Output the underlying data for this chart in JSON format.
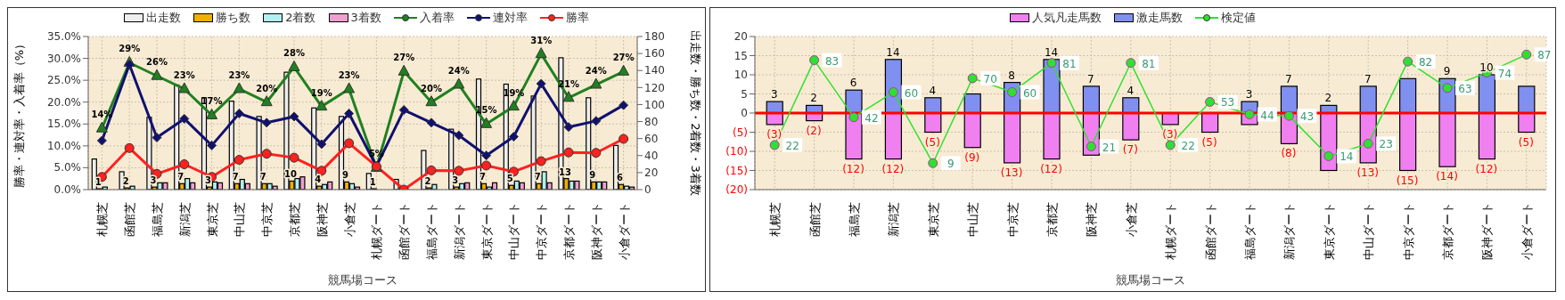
{
  "chart_data": [
    {
      "type": "bar",
      "xlabel": "競馬場コース",
      "ylabel": "勝率・連対率・入着率（%）",
      "y2label": "出走数・勝ち数・2着数・3着数",
      "categories": [
        "札幌芝",
        "函館芝",
        "福島芝",
        "新潟芝",
        "東京芝",
        "中山芝",
        "中京芝",
        "京都芝",
        "阪神芝",
        "小倉芝",
        "札幌ダート",
        "函館ダート",
        "福島ダート",
        "新潟ダート",
        "東京ダート",
        "中山ダート",
        "中京ダート",
        "京都ダート",
        "阪神ダート",
        "小倉ダート"
      ],
      "ylim": [
        0,
        35
      ],
      "yticks": [
        {
          "value": 0,
          "label": "0.0%"
        },
        {
          "value": 5,
          "label": "5.0%"
        },
        {
          "value": 10,
          "label": "10.0%"
        },
        {
          "value": 15,
          "label": "15.0%"
        },
        {
          "value": 20,
          "label": "20.0%"
        },
        {
          "value": 25,
          "label": "25.0%"
        },
        {
          "value": 30,
          "label": "30.0%"
        },
        {
          "value": 35,
          "label": "35.0%"
        }
      ],
      "y2lim": [
        0,
        180
      ],
      "y2ticks": [
        0,
        20,
        40,
        60,
        80,
        100,
        120,
        140,
        160,
        180
      ],
      "grid": true,
      "legend": "top",
      "series": [
        {
          "name": "出走数",
          "axis": "y2",
          "color": "#eeeeee",
          "values": [
            36,
            21,
            85,
            123,
            108,
            104,
            86,
            138,
            96,
            86,
            19,
            12,
            46,
            71,
            130,
            124,
            110,
            155,
            108,
            52
          ]
        },
        {
          "name": "勝ち数",
          "axis": "y2",
          "color": "#f0b000",
          "values": [
            1,
            2,
            3,
            7,
            3,
            7,
            7,
            10,
            4,
            9,
            1,
            0,
            2,
            3,
            7,
            5,
            7,
            13,
            9,
            6
          ],
          "value_labels": [
            "1",
            "2",
            "3",
            "7",
            "3",
            "7",
            "7",
            "10",
            "4",
            "9",
            "1",
            null,
            "2",
            "3",
            "7",
            "5",
            "7",
            "13",
            "9",
            "6"
          ]
        },
        {
          "name": "2着数",
          "axis": "y2",
          "color": "#b0f0f0",
          "values": [
            3,
            4,
            8,
            13,
            9,
            12,
            7,
            13,
            6,
            7,
            0,
            null,
            6,
            7,
            3,
            10,
            21,
            10,
            9,
            4
          ]
        },
        {
          "name": "3着数",
          "axis": "y2",
          "color": "#f0a0d0",
          "values": [
            null,
            0,
            8,
            8,
            8,
            7,
            4,
            15,
            9,
            3,
            0,
            0,
            null,
            8,
            8,
            8,
            8,
            10,
            9,
            3
          ]
        },
        {
          "name": "入着率",
          "type": "line",
          "color": "#208020",
          "marker": "triangle",
          "values": [
            14,
            29,
            26,
            23,
            17,
            23,
            20,
            28,
            19,
            23,
            5,
            27,
            20,
            24,
            15,
            19,
            31,
            21,
            24,
            27
          ],
          "value_labels": [
            "14%",
            "29%",
            "26%",
            "23%",
            "17%",
            "23%",
            "20%",
            "28%",
            "19%",
            "23%",
            "5%",
            "27%",
            "20%",
            "24%",
            "15%",
            "19%",
            "31%",
            "21%",
            "24%",
            "27%"
          ]
        },
        {
          "name": "連対率",
          "type": "line",
          "color": "#101070",
          "marker": "diamond",
          "values": [
            11.2,
            28.6,
            11.9,
            16.2,
            10.1,
            17.4,
            15.3,
            16.7,
            10.4,
            17.4,
            5.3,
            18.2,
            15.3,
            12.4,
            7.8,
            12.1,
            24.2,
            14.3,
            15.7,
            19.3
          ]
        },
        {
          "name": "勝率",
          "type": "line",
          "color": "#ff2020",
          "marker": "circle",
          "values": [
            2.9,
            9.5,
            3.6,
            5.8,
            2.9,
            6.8,
            8.2,
            7.3,
            4.3,
            10.6,
            5.3,
            0,
            4.4,
            4.3,
            5.5,
            4.1,
            6.5,
            8.5,
            8.4,
            11.6
          ]
        }
      ]
    },
    {
      "type": "bar",
      "xlabel": "競馬場コース",
      "stacked": true,
      "categories": [
        "札幌芝",
        "函館芝",
        "福島芝",
        "新潟芝",
        "東京芝",
        "中山芝",
        "中京芝",
        "京都芝",
        "阪神芝",
        "小倉芝",
        "札幌ダート",
        "函館ダート",
        "福島ダート",
        "新潟ダート",
        "東京ダート",
        "中山ダート",
        "中京ダート",
        "京都ダート",
        "阪神ダート",
        "小倉ダート"
      ],
      "ylim": [
        -20,
        20
      ],
      "yticks": [
        20,
        15,
        10,
        5,
        0,
        {
          "value": -5,
          "label": "(5)"
        },
        {
          "value": -10,
          "label": "(10)"
        },
        {
          "value": -15,
          "label": "(15)"
        },
        {
          "value": -20,
          "label": "(20)"
        }
      ],
      "y2lim": [
        -10,
        100
      ],
      "grid": true,
      "legend": "top",
      "ref_lines": [
        {
          "axis": "y",
          "value": 0,
          "color": "#ff0000"
        }
      ],
      "series": [
        {
          "name": "人気凡走馬数",
          "color": "#f080f0",
          "values": [
            -3,
            -2,
            -12,
            -12,
            -5,
            -9,
            -13,
            -12,
            -11,
            -7,
            -3,
            -5,
            -3,
            -8,
            -15,
            -13,
            -15,
            -14,
            -12,
            -5
          ],
          "value_labels": [
            "(3)",
            "(2)",
            "(12)",
            "(12)",
            "(5)",
            "(9)",
            "(13)",
            "(12)",
            null,
            "(7)",
            "(3)",
            "(5)",
            null,
            "(8)",
            null,
            "(13)",
            "(15)",
            "(14)",
            "(12)",
            "(5)"
          ]
        },
        {
          "name": "激走馬数",
          "color": "#8090f0",
          "values": [
            3,
            2,
            6,
            14,
            4,
            5,
            8,
            14,
            7,
            4,
            null,
            null,
            3,
            7,
            2,
            7,
            9,
            9,
            10,
            7
          ],
          "value_labels": [
            "3",
            "2",
            "6",
            "14",
            "4",
            null,
            "8",
            "14",
            "7",
            "4",
            null,
            null,
            "3",
            "7",
            "2",
            "7",
            null,
            "9",
            "10",
            null
          ]
        },
        {
          "name": "検定値",
          "type": "line",
          "axis": "y2",
          "color": "#30e030",
          "marker": "circle",
          "values": [
            22,
            83,
            42,
            60,
            9,
            70,
            60,
            81,
            21,
            81,
            22,
            53,
            44,
            43,
            14,
            23,
            82,
            63,
            74,
            87
          ],
          "value_labels": [
            "22",
            "83",
            "42",
            "60",
            "9",
            "70",
            "60",
            "81",
            "21",
            "81",
            "22",
            "53",
            "44",
            "43",
            "14",
            "23",
            "82",
            "63",
            "74",
            "87"
          ]
        }
      ]
    }
  ]
}
